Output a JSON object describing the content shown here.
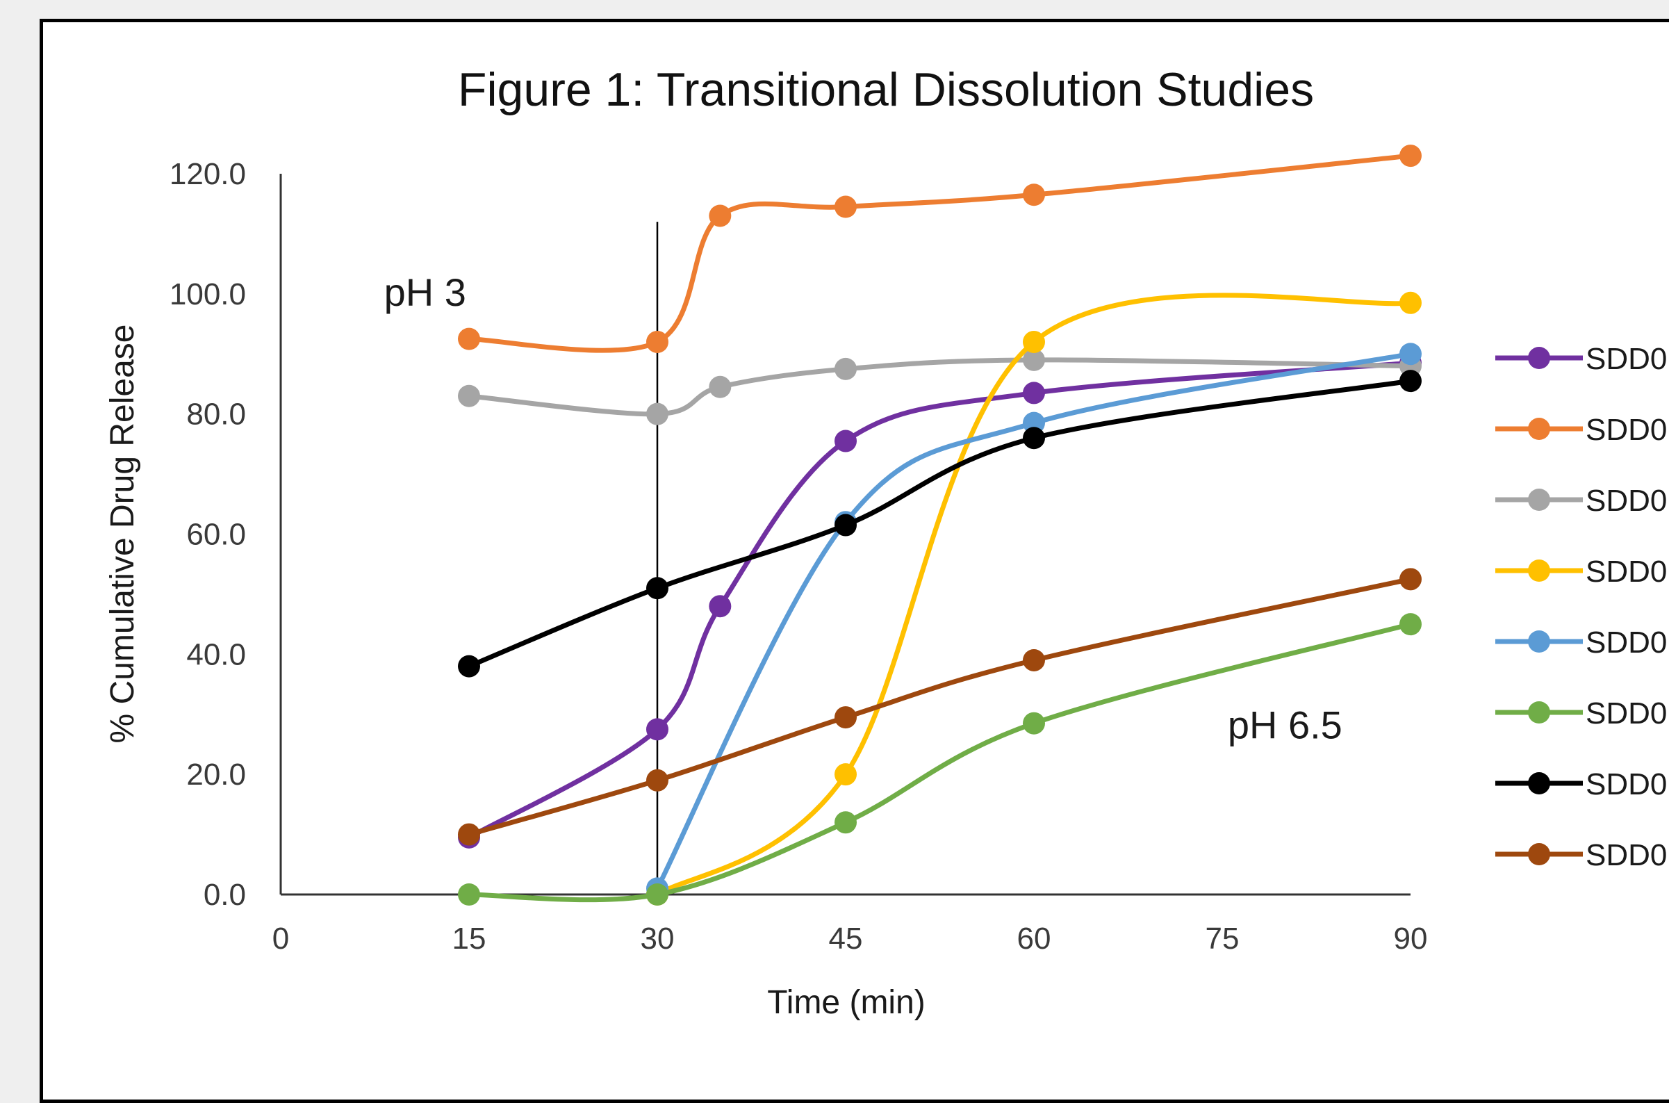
{
  "chart_data": {
    "type": "line",
    "title": "Figure 1: Transitional Dissolution Studies",
    "xlabel": "Time (min)",
    "ylabel": "% Cumulative Drug Release",
    "xlim": [
      0,
      90
    ],
    "ylim": [
      0,
      120
    ],
    "x_ticks": [
      "0",
      "15",
      "30",
      "45",
      "60",
      "75",
      "90"
    ],
    "y_ticks": [
      "0.0",
      "20.0",
      "40.0",
      "60.0",
      "80.0",
      "100.0",
      "120.0"
    ],
    "grid": false,
    "legend_position": "right",
    "annotations": [
      {
        "text": "pH 3",
        "x": 11.5,
        "y": 98
      },
      {
        "text": "pH 6.5",
        "x": 80,
        "y": 26
      }
    ],
    "reference_line": {
      "x": 30,
      "y_from": 0,
      "y_to": 112
    },
    "series": [
      {
        "name": "SDD0",
        "color": "#7030a0",
        "x": [
          15,
          30,
          35,
          45,
          60,
          90
        ],
        "y": [
          9.5,
          27.5,
          48.0,
          75.5,
          83.5,
          88.5
        ]
      },
      {
        "name": "SDD0",
        "color": "#ed7d31",
        "x": [
          15,
          30,
          35,
          45,
          60,
          90
        ],
        "y": [
          92.5,
          92.0,
          113.0,
          114.5,
          116.5,
          123.0
        ]
      },
      {
        "name": "SDD0",
        "color": "#a5a5a5",
        "x": [
          15,
          30,
          35,
          45,
          60,
          90
        ],
        "y": [
          83.0,
          80.0,
          84.5,
          87.5,
          89.0,
          88.0
        ]
      },
      {
        "name": "SDD0",
        "color": "#ffc000",
        "x": [
          30,
          45,
          60,
          90
        ],
        "y": [
          0.0,
          20.0,
          92.0,
          98.5
        ]
      },
      {
        "name": "SDD0",
        "color": "#5b9bd5",
        "x": [
          30,
          45,
          60,
          90
        ],
        "y": [
          1.0,
          62.0,
          78.5,
          90.0
        ]
      },
      {
        "name": "SDD0",
        "color": "#70ad47",
        "x": [
          15,
          30,
          45,
          60,
          90
        ],
        "y": [
          0.0,
          0.0,
          12.0,
          28.5,
          45.0
        ]
      },
      {
        "name": "SDD0",
        "color": "#000000",
        "x": [
          15,
          30,
          45,
          60,
          90
        ],
        "y": [
          38.0,
          51.0,
          61.5,
          76.0,
          85.5
        ]
      },
      {
        "name": "SDD0",
        "color": "#9e480e",
        "x": [
          15,
          30,
          45,
          60,
          90
        ],
        "y": [
          10.0,
          19.0,
          29.5,
          39.0,
          52.5
        ]
      }
    ]
  }
}
